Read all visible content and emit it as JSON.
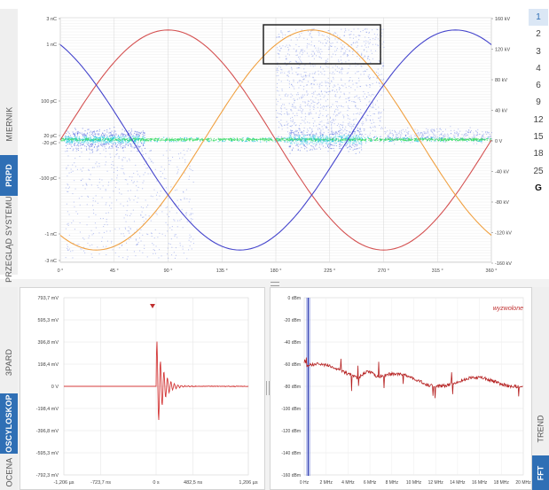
{
  "prpd": {
    "tabs": [
      "MIERNIK",
      "PRPD",
      "PRZEGLĄD SYSTEMU"
    ],
    "active_tab": "PRPD",
    "left_axis_labels": [
      "3 nC",
      "1 nC",
      "100 pC",
      "20 pC",
      "-20 pC",
      "-100 pC",
      "-1 nC",
      "-3 nC"
    ],
    "right_axis_labels": [
      "160 kV",
      "120 kV",
      "80 kV",
      "40 kV",
      "0 V",
      "-40 kV",
      "-80 kV",
      "-120 kV",
      "-160 kV"
    ],
    "x_axis_labels": [
      "0 °",
      "45 °",
      "90 °",
      "135 °",
      "180 °",
      "225 °",
      "270 °",
      "315 °",
      "360 °"
    ],
    "scale_options": [
      "1",
      "2",
      "3",
      "4",
      "6",
      "9",
      "12",
      "15",
      "18",
      "25",
      "G"
    ],
    "selected_scale": "1"
  },
  "oscilloscope": {
    "tabs": [
      "3PARD",
      "OSCYLOSKOP",
      "OCENA"
    ],
    "active_tab": "OSCYLOSKOP",
    "y_axis_labels": [
      "793,7 mV",
      "595,3 mV",
      "396,8 mV",
      "198,4 mV",
      "0 V",
      "-198,4 mV",
      "-396,8 mV",
      "-595,3 mV",
      "-792,3 mV"
    ],
    "x_axis_labels": [
      "-1,206 µs",
      "-723,7 ns",
      "0 s",
      "482,5 ns",
      "1,206 µs"
    ],
    "trace_color": "#d43a3a"
  },
  "fft": {
    "tabs": [
      "TREND",
      "FFT"
    ],
    "active_tab": "FFT",
    "status_label": "wyzwolone",
    "y_axis_labels": [
      "0 dBm",
      "-20 dBm",
      "-40 dBm",
      "-60 dBm",
      "-80 dBm",
      "-100 dBm",
      "-120 dBm",
      "-140 dBm",
      "-160 dBm"
    ],
    "x_axis_labels": [
      "0 Hz",
      "2 MHz",
      "4 MHz",
      "6 MHz",
      "8 MHz",
      "10 MHz",
      "12 MHz",
      "14 MHz",
      "16 MHz",
      "18 MHz",
      "20 MHz"
    ],
    "trace_color": "#b52020"
  },
  "colors": {
    "accent": "#2f6fb5",
    "sine_red": "#d45050",
    "sine_orange": "#f0a040",
    "sine_blue": "#4444cc",
    "scatter_blue": "#4a63e0",
    "scatter_cyan": "#27c6e6",
    "scatter_green": "#3ddc6a"
  }
}
